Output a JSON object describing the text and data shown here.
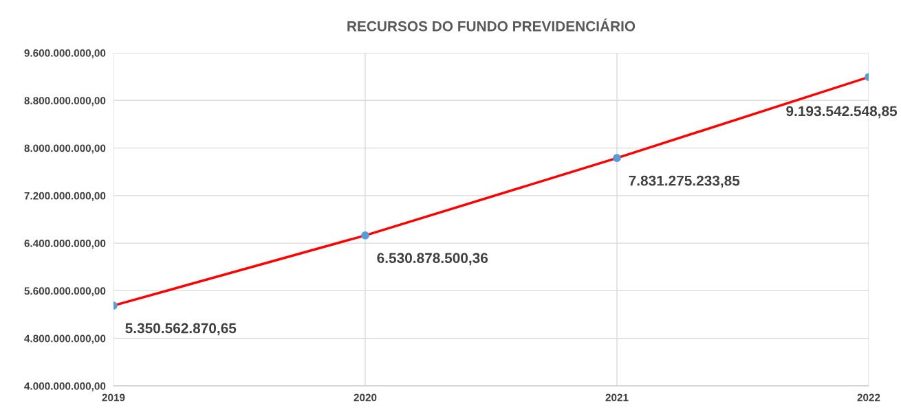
{
  "chart_data": {
    "type": "line",
    "title": "RECURSOS DO FUNDO PREVIDENCIÁRIO",
    "x": [
      2019,
      2020,
      2021,
      2022
    ],
    "series": [
      {
        "color": "#ff0000",
        "colors": [
          "#5b9bd5",
          "#5b9bd5",
          "#5b9bd5",
          "#5b9bd5"
        ],
        "values": [
          5350562870.65,
          6530878500.36,
          7831275233.85,
          9193542548.85
        ],
        "value_labels": [
          "5.350.562.870,65",
          "6.530.878.500,36",
          "7.831.275.233,85",
          "9.193.542.548,85"
        ]
      }
    ],
    "xlim": [
      2019,
      2022
    ],
    "xticks": [
      2019,
      2020,
      2021,
      2022
    ],
    "ylim": [
      4000000000,
      9600000000
    ],
    "yticks": [
      {
        "value": 4000000000,
        "label": "4.000.000.000,00"
      },
      {
        "value": 4800000000,
        "label": "4.800.000.000,00"
      },
      {
        "value": 5600000000,
        "label": "5.600.000.000,00"
      },
      {
        "value": 6400000000,
        "label": "6.400.000.000,00"
      },
      {
        "value": 7200000000,
        "label": "7.200.000.000,00"
      },
      {
        "value": 8000000000,
        "label": "8.000.000.000,00"
      },
      {
        "value": 8800000000,
        "label": "8.800.000.000,00"
      },
      {
        "value": 9600000000,
        "label": "9.600.000.000,00"
      }
    ],
    "grid": true,
    "marker": "circle",
    "line_style": "solid"
  }
}
